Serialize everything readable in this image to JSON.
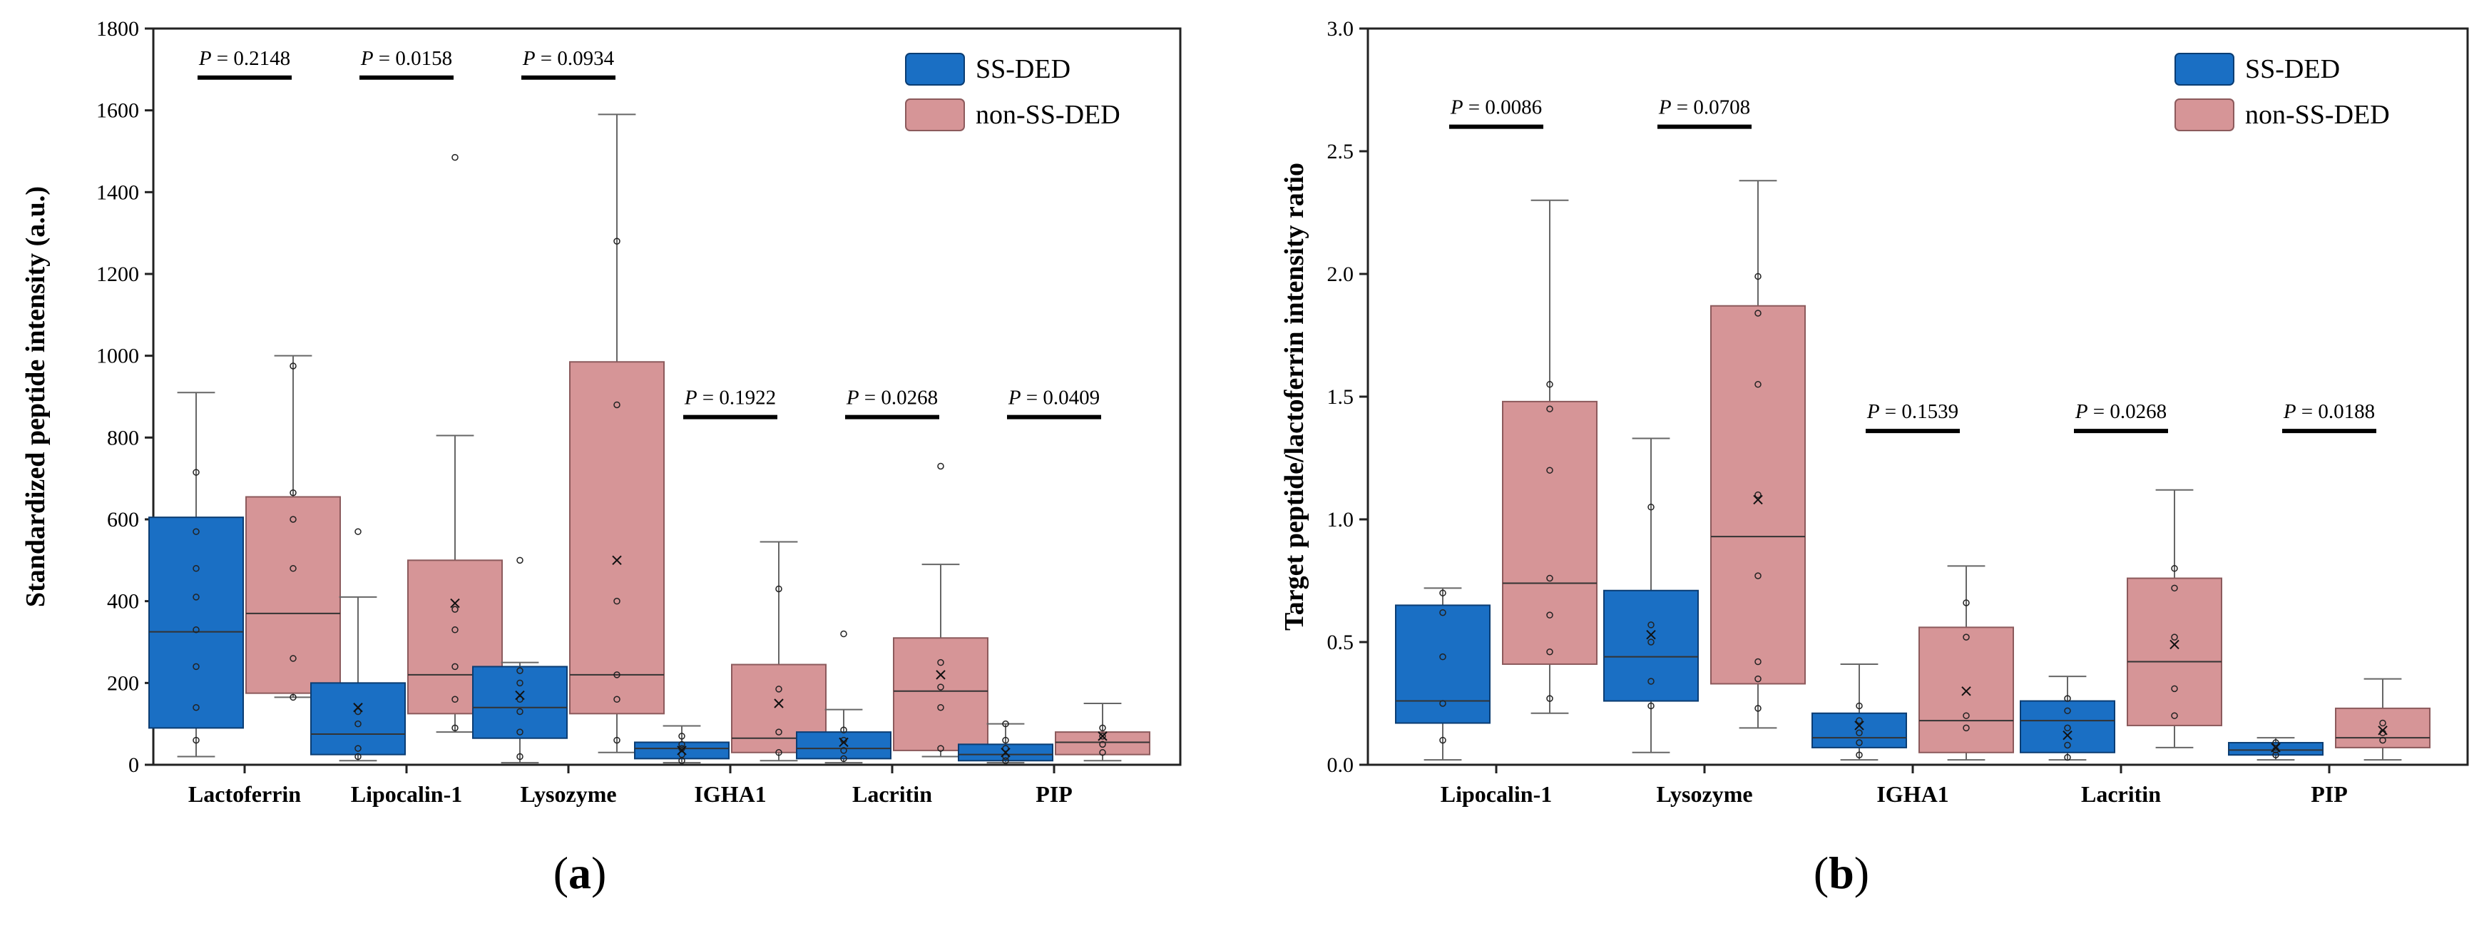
{
  "colors": {
    "ss": "#1a6fc4",
    "ss_stroke": "#0b3d73",
    "non": "#d69597",
    "non_stroke": "#8c5a5c"
  },
  "chart_data": [
    {
      "type": "box",
      "panel_label": "a",
      "ylabel": "Standardized peptide intensity (a.u.)",
      "ylim": [
        0,
        1800
      ],
      "yticks": [
        0,
        200,
        400,
        600,
        800,
        1000,
        1200,
        1400,
        1600,
        1800
      ],
      "categories": [
        "Lactoferrin",
        "Lipocalin-1",
        "Lysozyme",
        "IGHA1",
        "Lacritin",
        "PIP"
      ],
      "legend": [
        "SS-DED",
        "non-SS-DED"
      ],
      "legend_position": "top-right",
      "p_values": [
        {
          "label": "P",
          "text": " = 0.2148",
          "category": "Lactoferrin",
          "y": 1680
        },
        {
          "label": "P",
          "text": " = 0.0158",
          "category": "Lipocalin-1",
          "y": 1680
        },
        {
          "label": "P",
          "text": " = 0.0934",
          "category": "Lysozyme",
          "y": 1680
        },
        {
          "label": "P",
          "text": " = 0.1922",
          "category": "IGHA1",
          "y": 850
        },
        {
          "label": "P",
          "text": " = 0.0268",
          "category": "Lacritin",
          "y": 850
        },
        {
          "label": "P",
          "text": " = 0.0409",
          "category": "PIP",
          "y": 850
        }
      ],
      "series": [
        {
          "name": "SS-DED",
          "boxes": [
            {
              "whisker_low": 20,
              "q1": 90,
              "median": 325,
              "q3": 605,
              "whisker_high": 910,
              "mean": null,
              "points": [
                60,
                140,
                240,
                330,
                410,
                480,
                570,
                715
              ]
            },
            {
              "whisker_low": 10,
              "q1": 25,
              "median": 75,
              "q3": 200,
              "whisker_high": 410,
              "mean": 140,
              "points": [
                20,
                40,
                100,
                130,
                570
              ]
            },
            {
              "whisker_low": 5,
              "q1": 65,
              "median": 140,
              "q3": 240,
              "whisker_high": 250,
              "mean": 170,
              "points": [
                20,
                80,
                130,
                160,
                200,
                230,
                500
              ]
            },
            {
              "whisker_low": 5,
              "q1": 15,
              "median": 40,
              "q3": 55,
              "whisker_high": 95,
              "mean": 35,
              "points": [
                10,
                25,
                40,
                50,
                70
              ]
            },
            {
              "whisker_low": 5,
              "q1": 15,
              "median": 40,
              "q3": 80,
              "whisker_high": 135,
              "mean": 55,
              "points": [
                15,
                35,
                60,
                85,
                320
              ]
            },
            {
              "whisker_low": 5,
              "q1": 10,
              "median": 25,
              "q3": 50,
              "whisker_high": 100,
              "mean": 30,
              "points": [
                10,
                20,
                40,
                60,
                100
              ]
            }
          ]
        },
        {
          "name": "non-SS-DED",
          "boxes": [
            {
              "whisker_low": 165,
              "q1": 175,
              "median": 370,
              "q3": 655,
              "whisker_high": 1000,
              "mean": null,
              "points": [
                165,
                260,
                480,
                600,
                665,
                975
              ]
            },
            {
              "whisker_low": 80,
              "q1": 125,
              "median": 220,
              "q3": 500,
              "whisker_high": 805,
              "mean": 395,
              "points": [
                90,
                160,
                240,
                330,
                380,
                1485
              ]
            },
            {
              "whisker_low": 30,
              "q1": 125,
              "median": 220,
              "q3": 985,
              "whisker_high": 1590,
              "mean": 500,
              "points": [
                60,
                160,
                220,
                400,
                880,
                1280
              ]
            },
            {
              "whisker_low": 10,
              "q1": 30,
              "median": 65,
              "q3": 245,
              "whisker_high": 545,
              "mean": 150,
              "points": [
                30,
                80,
                185,
                430
              ]
            },
            {
              "whisker_low": 20,
              "q1": 35,
              "median": 180,
              "q3": 310,
              "whisker_high": 490,
              "mean": 220,
              "points": [
                40,
                140,
                190,
                250,
                730
              ]
            },
            {
              "whisker_low": 10,
              "q1": 25,
              "median": 55,
              "q3": 80,
              "whisker_high": 150,
              "mean": 70,
              "points": [
                30,
                50,
                70,
                90
              ]
            }
          ]
        }
      ]
    },
    {
      "type": "box",
      "panel_label": "b",
      "ylabel": "Target peptide/lactoferrin intensity ratio",
      "ylim": [
        0,
        3.0
      ],
      "yticks": [
        "0.0",
        "0.5",
        "1.0",
        "1.5",
        "2.0",
        "2.5",
        "3.0"
      ],
      "categories": [
        "Lipocalin-1",
        "Lysozyme",
        "IGHA1",
        "Lacritin",
        "PIP"
      ],
      "legend": [
        "SS-DED",
        "non-SS-DED"
      ],
      "legend_position": "top-right",
      "p_values": [
        {
          "label": "P",
          "text": " = 0.0086",
          "category": "Lipocalin-1",
          "y": 2.6
        },
        {
          "label": "P",
          "text": " = 0.0708",
          "category": "Lysozyme",
          "y": 2.6
        },
        {
          "label": "P",
          "text": " = 0.1539",
          "category": "IGHA1",
          "y": 1.36
        },
        {
          "label": "P",
          "text": " = 0.0268",
          "category": "Lacritin",
          "y": 1.36
        },
        {
          "label": "P",
          "text": " = 0.0188",
          "category": "PIP",
          "y": 1.36
        }
      ],
      "series": [
        {
          "name": "SS-DED",
          "boxes": [
            {
              "whisker_low": 0.02,
              "q1": 0.17,
              "median": 0.26,
              "q3": 0.65,
              "whisker_high": 0.72,
              "mean": null,
              "points": [
                0.1,
                0.25,
                0.44,
                0.62,
                0.7
              ]
            },
            {
              "whisker_low": 0.05,
              "q1": 0.26,
              "median": 0.44,
              "q3": 0.71,
              "whisker_high": 1.33,
              "mean": 0.53,
              "points": [
                0.24,
                0.34,
                0.5,
                0.57,
                1.05
              ]
            },
            {
              "whisker_low": 0.02,
              "q1": 0.07,
              "median": 0.11,
              "q3": 0.21,
              "whisker_high": 0.41,
              "mean": 0.16,
              "points": [
                0.04,
                0.09,
                0.13,
                0.18,
                0.24
              ]
            },
            {
              "whisker_low": 0.02,
              "q1": 0.05,
              "median": 0.18,
              "q3": 0.26,
              "whisker_high": 0.36,
              "mean": 0.12,
              "points": [
                0.03,
                0.08,
                0.15,
                0.22,
                0.27
              ]
            },
            {
              "whisker_low": 0.02,
              "q1": 0.04,
              "median": 0.06,
              "q3": 0.09,
              "whisker_high": 0.11,
              "mean": 0.07,
              "points": [
                0.04,
                0.06,
                0.09
              ]
            }
          ]
        },
        {
          "name": "non-SS-DED",
          "boxes": [
            {
              "whisker_low": 0.21,
              "q1": 0.41,
              "median": 0.74,
              "q3": 1.48,
              "whisker_high": 2.3,
              "mean": null,
              "points": [
                0.27,
                0.46,
                0.61,
                0.76,
                1.2,
                1.45,
                1.55
              ]
            },
            {
              "whisker_low": 0.15,
              "q1": 0.33,
              "median": 0.93,
              "q3": 1.87,
              "whisker_high": 2.38,
              "mean": 1.08,
              "points": [
                0.23,
                0.35,
                0.42,
                0.77,
                1.1,
                1.55,
                1.84,
                1.99
              ]
            },
            {
              "whisker_low": 0.02,
              "q1": 0.05,
              "median": 0.18,
              "q3": 0.56,
              "whisker_high": 0.81,
              "mean": 0.3,
              "points": [
                0.15,
                0.2,
                0.52,
                0.66
              ]
            },
            {
              "whisker_low": 0.07,
              "q1": 0.16,
              "median": 0.42,
              "q3": 0.76,
              "whisker_high": 1.12,
              "mean": 0.49,
              "points": [
                0.2,
                0.31,
                0.52,
                0.72,
                0.8
              ]
            },
            {
              "whisker_low": 0.02,
              "q1": 0.07,
              "median": 0.11,
              "q3": 0.23,
              "whisker_high": 0.35,
              "mean": 0.14,
              "points": [
                0.1,
                0.13,
                0.17
              ]
            }
          ]
        }
      ]
    }
  ]
}
